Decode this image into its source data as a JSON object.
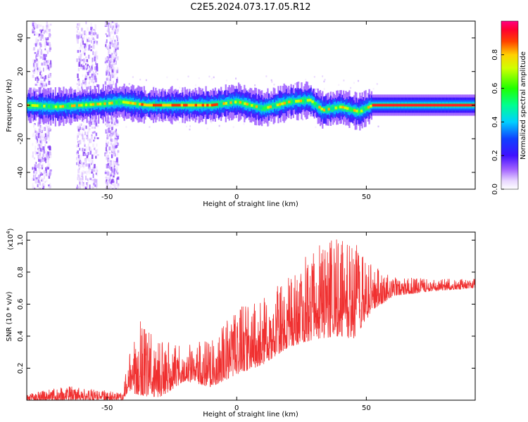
{
  "title": "C2E5.2024.073.17.05.R12",
  "colors": {
    "line": "#f03030",
    "axis": "#000000",
    "spectrum_background": "#ffffff"
  },
  "chart_data": [
    {
      "type": "heatmap",
      "xlabel": "Height of straight line (km)",
      "ylabel": "Frequency (Hz)",
      "xlim": [
        -81,
        92
      ],
      "ylim": [
        -50,
        50
      ],
      "x_ticks": [
        -50,
        0,
        50
      ],
      "y_ticks": [
        -40,
        -20,
        0,
        20,
        40
      ],
      "x_tick_labels": [
        "-50",
        "0",
        "50"
      ],
      "y_tick_labels": [
        "-40",
        "-20",
        "0",
        "20",
        "40"
      ],
      "colorbar": {
        "label": "Normalized spectral amplitude",
        "range": [
          0,
          1
        ],
        "ticks": [
          0.0,
          0.2,
          0.4,
          0.6,
          0.8
        ],
        "tick_labels": [
          "0.0",
          "0.2",
          "0.4",
          "0.6",
          "0.8"
        ],
        "colormap": "rainbow"
      },
      "band_center_track": [
        {
          "x": -81,
          "y": 0
        },
        {
          "x": -70,
          "y": -1
        },
        {
          "x": -60,
          "y": 0
        },
        {
          "x": -50,
          "y": 1
        },
        {
          "x": -45,
          "y": 2
        },
        {
          "x": -35,
          "y": 0
        },
        {
          "x": -10,
          "y": 0
        },
        {
          "x": 0,
          "y": 2
        },
        {
          "x": 10,
          "y": -2
        },
        {
          "x": 20,
          "y": 2
        },
        {
          "x": 28,
          "y": 3
        },
        {
          "x": 33,
          "y": -3
        },
        {
          "x": 40,
          "y": -1
        },
        {
          "x": 47,
          "y": -4
        },
        {
          "x": 52,
          "y": 0
        },
        {
          "x": 92,
          "y": 0
        }
      ]
    },
    {
      "type": "line",
      "xlabel": "Height of straight line (km)",
      "ylabel": "SNR (10 * v/v)",
      "y_scale_note": "(x10",
      "y_scale_exponent": "4",
      "xlim": [
        -81,
        92
      ],
      "ylim": [
        0,
        1.05
      ],
      "x_ticks": [
        -50,
        0,
        50
      ],
      "y_ticks": [
        0.2,
        0.4,
        0.6,
        0.8,
        1.0
      ],
      "x_tick_labels": [
        "-50",
        "0",
        "50"
      ],
      "y_tick_labels": [
        "0.2",
        "0.4",
        "0.6",
        "0.8",
        "1.0"
      ],
      "series": [
        {
          "envelope": [
            {
              "x": -81,
              "low": 0.0,
              "high": 0.04
            },
            {
              "x": -65,
              "low": 0.0,
              "high": 0.09
            },
            {
              "x": -50,
              "low": 0.0,
              "high": 0.06
            },
            {
              "x": -44,
              "low": 0.0,
              "high": 0.04
            },
            {
              "x": -42,
              "low": 0.05,
              "high": 0.26
            },
            {
              "x": -37,
              "low": 0.03,
              "high": 0.55
            },
            {
              "x": -30,
              "low": 0.01,
              "high": 0.38
            },
            {
              "x": -20,
              "low": 0.12,
              "high": 0.36
            },
            {
              "x": -10,
              "low": 0.08,
              "high": 0.37
            },
            {
              "x": 0,
              "low": 0.16,
              "high": 0.58
            },
            {
              "x": 10,
              "low": 0.22,
              "high": 0.63
            },
            {
              "x": 20,
              "low": 0.33,
              "high": 0.78
            },
            {
              "x": 30,
              "low": 0.38,
              "high": 0.96
            },
            {
              "x": 40,
              "low": 0.4,
              "high": 1.02
            },
            {
              "x": 45,
              "low": 0.38,
              "high": 1.0
            },
            {
              "x": 52,
              "low": 0.55,
              "high": 0.85
            },
            {
              "x": 60,
              "low": 0.65,
              "high": 0.77
            },
            {
              "x": 75,
              "low": 0.68,
              "high": 0.76
            },
            {
              "x": 92,
              "low": 0.7,
              "high": 0.76
            }
          ]
        }
      ]
    }
  ]
}
